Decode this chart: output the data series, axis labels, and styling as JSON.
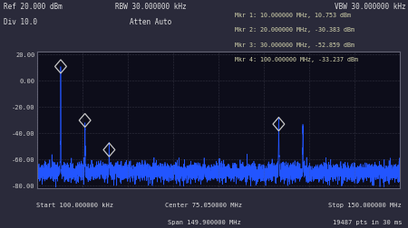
{
  "bg_color": "#1a1a2e",
  "plot_bg_color": "#0d0d1a",
  "text_color": "#e0e0e0",
  "trace_color": "#2255ff",
  "grid_color": "#555566",
  "axis_label_color": "#d0d0d0",
  "xlim": [
    0.1,
    150.0
  ],
  "ylim": [
    -82,
    22
  ],
  "yticks": [
    -80,
    -60,
    -40,
    -20,
    0.0,
    20
  ],
  "ytick_labels": [
    "-80.00",
    "-60.00",
    "-40.00",
    "-20.00",
    "0.00",
    "20.00"
  ],
  "peaks": [
    {
      "freq": 10.0,
      "power": 10.753
    },
    {
      "freq": 20.0,
      "power": -30.383
    },
    {
      "freq": 30.0,
      "power": -52.859
    },
    {
      "freq": 100.0,
      "power": -33.237
    },
    {
      "freq": 110.0,
      "power": -36.5
    }
  ],
  "noise_floor": -70,
  "noise_std": 3.5,
  "ref": "Ref 20.000 dBm",
  "div": "Div 10.0",
  "rbw": "RBW 30.000000 kHz",
  "atten": "Atten Auto",
  "vbw": "VBW 30.000000 kHz",
  "mkr1": "Mkr 1: 10.000000 MHz, 10.753 dBm",
  "mkr2": "Mkr 2: 20.000000 MHz, -30.383 dBm",
  "mkr3": "Mkr 3: 30.000000 MHz, -52.859 dBm",
  "mkr4": "Mkr 4: 100.000000 MHz, -33.237 dBm",
  "start_label": "Start 100.000000 kHz",
  "center_label": "Center 75.050000 MHz",
  "span_label": "Span 149.900000 MHz",
  "stop_label": "Stop 150.000000 MHz",
  "pts_label": "19487 pts in 30 ms",
  "marker_color": "#c8c8c8",
  "outer_bg": "#2a2a3a"
}
